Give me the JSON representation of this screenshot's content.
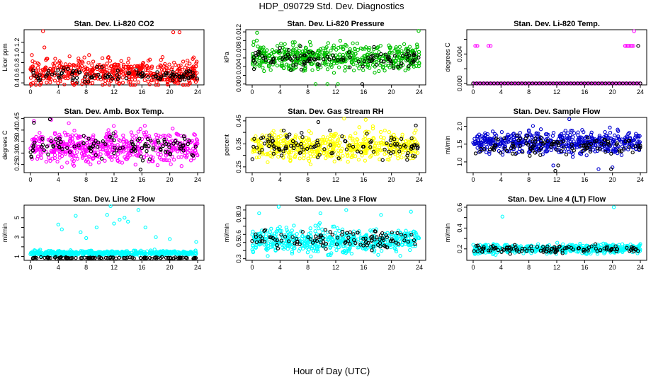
{
  "figure": {
    "title": "HDP_090729  Std. Dev. Diagnostics",
    "xlabel": "Hour of Day (UTC)"
  },
  "chart_data": [
    {
      "type": "scatter",
      "title": "Stan. Dev. Li-820 CO2",
      "ylabel": "Licor ppm",
      "xlim": [
        0,
        24
      ],
      "xticks": [
        0,
        4,
        8,
        12,
        16,
        20,
        24
      ],
      "ylim": [
        0.36,
        1.45
      ],
      "yticks": [
        0.4,
        0.6,
        0.8,
        1.0,
        1.2
      ],
      "ytick_labels": [
        "0.4",
        "0.6",
        "0.8",
        "1.0",
        "1.2"
      ],
      "series": [
        {
          "color": "#ff0000",
          "base": 0.6,
          "spread": 0.24,
          "outliers": [
            [
              1.8,
              1.42
            ],
            [
              2.0,
              1.1
            ],
            [
              20.5,
              1.4
            ],
            [
              21.4,
              1.4
            ],
            [
              0.2,
              0.95
            ]
          ]
        },
        {
          "color": "#000000",
          "base": 0.55,
          "spread": 0.12,
          "outliers": []
        }
      ]
    },
    {
      "type": "scatter",
      "title": "Stan. Dev. Li-820 Pressure",
      "ylabel": "kPa",
      "xlim": [
        0,
        24
      ],
      "xticks": [
        0,
        4,
        8,
        12,
        16,
        20,
        24
      ],
      "ylim": [
        -0.0002,
        0.0125
      ],
      "yticks": [
        0,
        0.002,
        0.004,
        0.006,
        0.008,
        0.01,
        0.012
      ],
      "ytick_labels": [
        "0.000",
        "",
        "0.004",
        "",
        "0.008",
        "",
        "0.012"
      ],
      "series": [
        {
          "color": "#00c000",
          "base": 0.0062,
          "spread": 0.0028,
          "outliers": [
            [
              0.7,
              0.0118
            ],
            [
              23.9,
              0.0122
            ],
            [
              9.1,
              0.0
            ],
            [
              10.8,
              0.0
            ],
            [
              12.3,
              0.0
            ]
          ]
        },
        {
          "color": "#000000",
          "base": 0.0058,
          "spread": 0.0018,
          "outliers": [
            [
              15.8,
              0.0
            ]
          ]
        }
      ]
    },
    {
      "type": "scatter",
      "title": "Stan. Dev. Li-820 Temp.",
      "ylabel": "degrees C",
      "xlim": [
        0,
        24
      ],
      "xticks": [
        0,
        4,
        8,
        12,
        16,
        20,
        24
      ],
      "ylim": [
        -0.0002,
        0.0073
      ],
      "yticks": [
        0,
        0.002,
        0.004,
        0.006
      ],
      "ytick_labels": [
        "0.000",
        "",
        "0.004",
        ""
      ],
      "series": [
        {
          "color": "#ff00ff",
          "mode": "flat",
          "base": 0.0,
          "step": 0.25,
          "outliers": [
            [
              0.3,
              0.0051
            ],
            [
              0.6,
              0.0051
            ],
            [
              2.2,
              0.0051
            ],
            [
              2.5,
              0.0051
            ],
            [
              21.8,
              0.0051
            ],
            [
              22.0,
              0.0051
            ],
            [
              22.2,
              0.0051
            ],
            [
              22.4,
              0.0051
            ],
            [
              22.6,
              0.0051
            ],
            [
              22.8,
              0.0051
            ],
            [
              23.0,
              0.0051
            ],
            [
              23.1,
              0.0071
            ]
          ]
        },
        {
          "color": "#000000",
          "mode": "flat",
          "base": 0.0,
          "step": 0.5,
          "outliers": [
            [
              23.7,
              0.0051
            ]
          ]
        }
      ]
    },
    {
      "type": "scatter",
      "title": "Stan. Dev. Amb. Box Temp.",
      "ylabel": "degrees C",
      "xlim": [
        0,
        24
      ],
      "xticks": [
        0,
        4,
        8,
        12,
        16,
        20,
        24
      ],
      "ylim": [
        0.215,
        0.455
      ],
      "yticks": [
        0.25,
        0.3,
        0.35,
        0.4,
        0.45
      ],
      "ytick_labels": [
        "0.25",
        "0.30",
        "0.35",
        "0.40",
        "0.45"
      ],
      "series": [
        {
          "color": "#ff00ff",
          "base": 0.325,
          "spread": 0.06,
          "outliers": [
            [
              0.5,
              0.44
            ],
            [
              3.0,
              0.445
            ],
            [
              5.5,
              0.43
            ],
            [
              11.2,
              0.4
            ]
          ]
        },
        {
          "color": "#000000",
          "base": 0.33,
          "spread": 0.045,
          "outliers": [
            [
              0.5,
              0.432
            ],
            [
              2.8,
              0.447
            ],
            [
              15.8,
              0.228
            ]
          ]
        }
      ]
    },
    {
      "type": "scatter",
      "title": "Stan. Dev. Gas Stream RH",
      "ylabel": "percent",
      "xlim": [
        0,
        24
      ],
      "xticks": [
        0,
        4,
        8,
        12,
        16,
        20,
        24
      ],
      "ylim": [
        0.225,
        0.465
      ],
      "yticks": [
        0.25,
        0.3,
        0.35,
        0.4,
        0.45
      ],
      "ytick_labels": [
        "0.25",
        "",
        "0.35",
        "",
        "0.45"
      ],
      "series": [
        {
          "color": "#ffff00",
          "base": 0.34,
          "spread": 0.055,
          "outliers": [
            [
              13.2,
              0.46
            ],
            [
              16.3,
              0.455
            ]
          ]
        },
        {
          "color": "#000000",
          "base": 0.34,
          "spread": 0.05,
          "outliers": [
            [
              9.5,
              0.445
            ],
            [
              23.5,
              0.43
            ]
          ]
        }
      ]
    },
    {
      "type": "scatter",
      "title": "Stan. Dev. Sample Flow",
      "ylabel": "ml/min",
      "xlim": [
        0,
        24
      ],
      "xticks": [
        0,
        4,
        8,
        12,
        16,
        20,
        24
      ],
      "ylim": [
        0.7,
        2.25
      ],
      "yticks": [
        1.0,
        1.5,
        2.0
      ],
      "ytick_labels": [
        "1.0",
        "1.5",
        "2.0"
      ],
      "series": [
        {
          "color": "#0000d0",
          "base": 1.55,
          "spread": 0.28,
          "outliers": [
            [
              13.8,
              2.2
            ],
            [
              11.5,
              0.9
            ],
            [
              18.0,
              0.8
            ],
            [
              20.0,
              0.85
            ]
          ]
        },
        {
          "color": "#000000",
          "base": 1.45,
          "spread": 0.22,
          "outliers": [
            [
              11.8,
              0.75
            ],
            [
              12.2,
              0.9
            ],
            [
              19.8,
              0.8
            ]
          ]
        }
      ]
    },
    {
      "type": "scatter",
      "title": "Stan. Dev. Line 2 Flow",
      "ylabel": "ml/min",
      "xlim": [
        0,
        24
      ],
      "xticks": [
        0,
        4,
        8,
        12,
        16,
        20,
        24
      ],
      "ylim": [
        0.6,
        6.3
      ],
      "yticks": [
        1,
        2,
        3,
        4,
        5
      ],
      "ytick_labels": [
        "1",
        "",
        "3",
        "",
        "5"
      ],
      "series": [
        {
          "color": "#00ffff",
          "base": 1.35,
          "spread": 0.22,
          "outliers": [
            [
              4.0,
              4.3
            ],
            [
              4.5,
              3.8
            ],
            [
              6.5,
              5.2
            ],
            [
              7.2,
              3.5
            ],
            [
              8.0,
              2.9
            ],
            [
              9.5,
              4.0
            ],
            [
              11.0,
              5.3
            ],
            [
              11.5,
              6.2
            ],
            [
              12.0,
              4.4
            ],
            [
              12.8,
              4.8
            ],
            [
              13.5,
              5.0
            ],
            [
              14.0,
              4.6
            ],
            [
              15.5,
              5.8
            ],
            [
              16.5,
              4.0
            ],
            [
              18.0,
              3.0
            ],
            [
              20.0,
              2.8
            ],
            [
              23.8,
              2.5
            ]
          ]
        },
        {
          "color": "#000000",
          "base": 0.85,
          "spread": 0.08,
          "outliers": []
        }
      ]
    },
    {
      "type": "scatter",
      "title": "Stan. Dev. Line 3 Flow",
      "ylabel": "ml/min",
      "xlim": [
        0,
        24
      ],
      "xticks": [
        0,
        4,
        8,
        12,
        16,
        20,
        24
      ],
      "ylim": [
        0.28,
        0.96
      ],
      "yticks": [
        0.3,
        0.4,
        0.5,
        0.6,
        0.7,
        0.8,
        0.9
      ],
      "ytick_labels": [
        "0.3",
        "",
        "0.5",
        "0.6",
        "",
        "0.8",
        "0.9"
      ],
      "series": [
        {
          "color": "#00ffff",
          "base": 0.52,
          "spread": 0.14,
          "outliers": [
            [
              1.0,
              0.86
            ],
            [
              3.8,
              0.94
            ],
            [
              9.8,
              0.86
            ],
            [
              13.5,
              0.9
            ],
            [
              18.5,
              0.84
            ],
            [
              22.8,
              0.88
            ]
          ]
        },
        {
          "color": "#000000",
          "base": 0.55,
          "spread": 0.11,
          "outliers": []
        }
      ]
    },
    {
      "type": "scatter",
      "title": "Stan. Dev. Line 4 (LT) Flow",
      "ylabel": "ml/min",
      "xlim": [
        0,
        24
      ],
      "xticks": [
        0,
        4,
        8,
        12,
        16,
        20,
        24
      ],
      "ylim": [
        0.09,
        0.62
      ],
      "yticks": [
        0.2,
        0.3,
        0.4,
        0.5,
        0.6
      ],
      "ytick_labels": [
        "0.2",
        "",
        "0.4",
        "",
        "0.6"
      ],
      "series": [
        {
          "color": "#00ffff",
          "base": 0.2,
          "spread": 0.04,
          "outliers": [
            [
              4.2,
              0.51
            ],
            [
              20.2,
              0.6
            ]
          ]
        },
        {
          "color": "#000000",
          "base": 0.2,
          "spread": 0.035,
          "outliers": []
        }
      ]
    }
  ]
}
